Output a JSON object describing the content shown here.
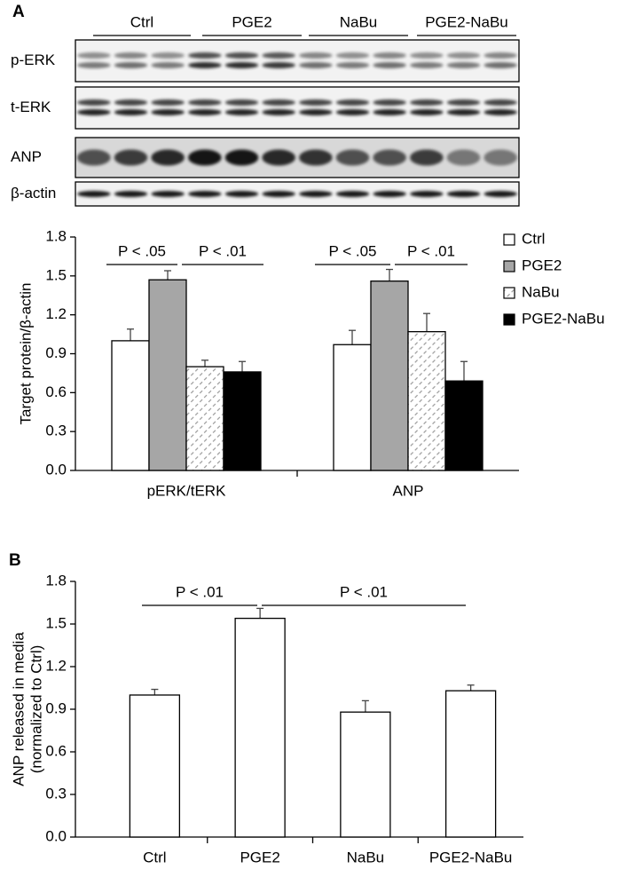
{
  "panels": {
    "a": "A",
    "b": "B"
  },
  "blot": {
    "groups": [
      "Ctrl",
      "PGE2",
      "NaBu",
      "PGE2-NaBu"
    ],
    "rows": [
      "p-ERK",
      "t-ERK",
      "ANP",
      "β-actin"
    ]
  },
  "chart_data": [
    {
      "type": "bar",
      "ylabel": [
        "Target protein/β-actin"
      ],
      "categories": [
        "pERK/tERK",
        "ANP"
      ],
      "series": [
        {
          "name": "Ctrl",
          "color": "#ffffff",
          "values": [
            1.0,
            0.97
          ],
          "errors": [
            0.09,
            0.11
          ]
        },
        {
          "name": "PGE2",
          "color": "#a6a6a6",
          "values": [
            1.47,
            1.46
          ],
          "errors": [
            0.07,
            0.09
          ]
        },
        {
          "name": "NaBu",
          "color": "#ffffff",
          "hatch": true,
          "values": [
            0.8,
            1.07
          ],
          "errors": [
            0.05,
            0.14
          ]
        },
        {
          "name": "PGE2-NaBu",
          "color": "#000000",
          "values": [
            0.76,
            0.69
          ],
          "errors": [
            0.08,
            0.15
          ]
        }
      ],
      "annotations": [
        "P < .05",
        "P < .01",
        "P < .05",
        "P < .01"
      ],
      "ylim": [
        0,
        1.8
      ],
      "yticks": [
        {
          "value": 0,
          "label": "0.0"
        },
        0.3,
        0.6,
        0.9,
        1.2,
        1.5,
        1.8
      ],
      "legend": "right"
    },
    {
      "type": "bar",
      "ylabel": [
        "ANP released in media",
        "(normalized to Ctrl)"
      ],
      "categories": [
        "Ctrl",
        "PGE2",
        "NaBu",
        "PGE2-NaBu"
      ],
      "values": [
        1.0,
        1.54,
        0.88,
        1.03
      ],
      "errors": [
        0.04,
        0.07,
        0.08,
        0.04
      ],
      "color": "#ffffff",
      "annotations": [
        "P < .01",
        "P < .01"
      ],
      "ylim": [
        0,
        1.8
      ],
      "yticks": [
        {
          "value": 0,
          "label": "0.0"
        },
        0.3,
        0.6,
        0.9,
        1.2,
        1.5,
        1.8
      ]
    }
  ]
}
